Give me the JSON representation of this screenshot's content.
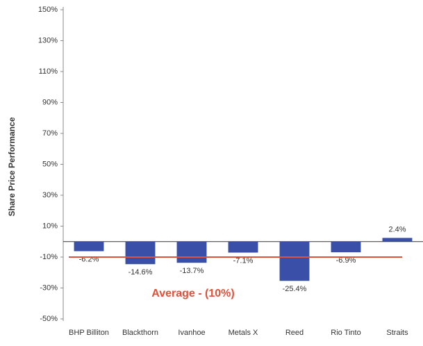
{
  "chart_data": {
    "type": "bar",
    "y_label": "Share Price Performance",
    "categories": [
      "BHP Billiton",
      "Blackthorn",
      "Ivanhoe",
      "Metals X",
      "Reed",
      "Rio Tinto",
      "Straits"
    ],
    "values": [
      -6.2,
      -14.6,
      -13.7,
      -7.1,
      -25.4,
      -6.9,
      2.4
    ],
    "value_labels": [
      "-6.2%",
      "-14.6%",
      "-13.7%",
      "-7.1%",
      "-25.4%",
      "-6.9%",
      "2.4%"
    ],
    "color": "#3a4fa8",
    "ylim": [
      -50,
      150
    ],
    "yticks": [
      {
        "value": -50,
        "label": "-50%"
      },
      {
        "value": -30,
        "label": "-30%"
      },
      {
        "value": -10,
        "label": "-10%"
      },
      {
        "value": 10,
        "label": "10%"
      },
      {
        "value": 30,
        "label": "30%"
      },
      {
        "value": 50,
        "label": "50%"
      },
      {
        "value": 70,
        "label": "70%"
      },
      {
        "value": 90,
        "label": "90%"
      },
      {
        "value": 110,
        "label": "110%"
      },
      {
        "value": 130,
        "label": "130%"
      },
      {
        "value": 150,
        "label": "150%"
      }
    ],
    "average": {
      "value": -10,
      "label": "Average - (10%)",
      "color": "#e0503a"
    }
  }
}
